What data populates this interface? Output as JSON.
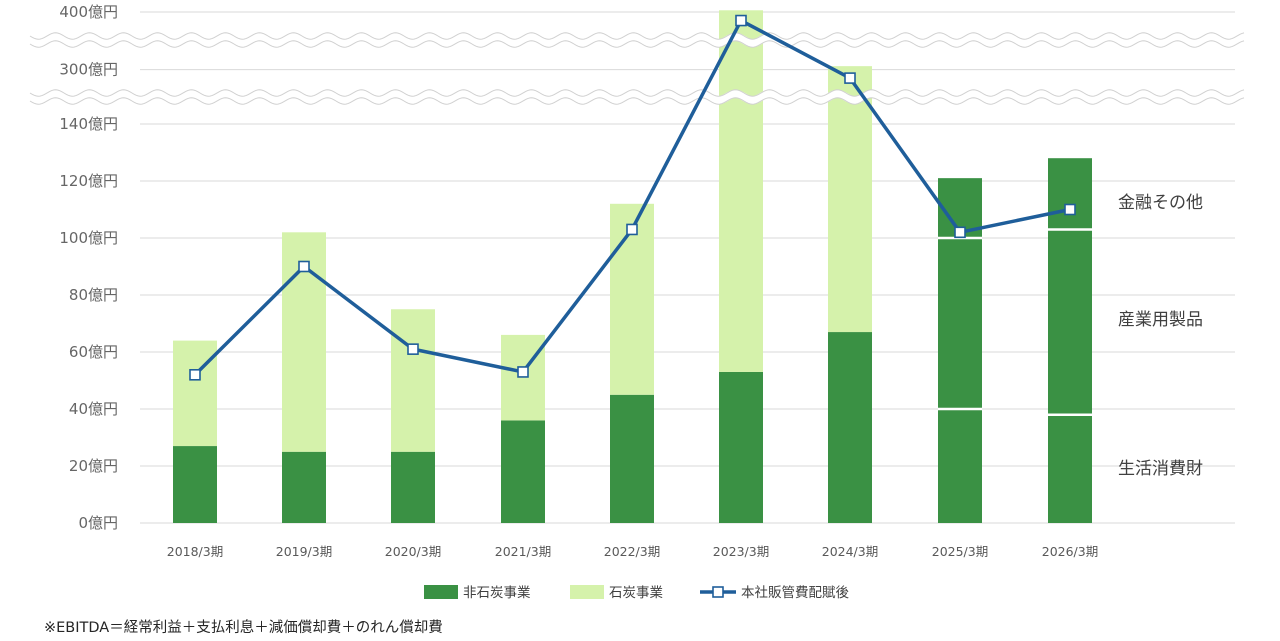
{
  "chart_data": {
    "type": "bar",
    "stacked": true,
    "categories": [
      "2018/3期",
      "2019/3期",
      "2020/3期",
      "2021/3期",
      "2022/3期",
      "2023/3期",
      "2024/3期",
      "2025/3期",
      "2026/3期"
    ],
    "y_ticks": [
      "0億円",
      "20億円",
      "40億円",
      "60億円",
      "80億円",
      "100億円",
      "120億円",
      "140億円",
      "300億円",
      "400億円"
    ],
    "axis_breaks": [
      "140億円-300億円",
      "300億円-400億円"
    ],
    "series": [
      {
        "name": "非石炭事業",
        "type": "bar",
        "color": "#3a9144",
        "values": [
          27,
          25,
          25,
          36,
          45,
          53,
          67,
          121,
          128
        ]
      },
      {
        "name": "石炭事業",
        "type": "bar",
        "color": "#d5f2ab",
        "values": [
          37,
          77,
          50,
          30,
          67,
          350,
          238,
          0,
          0
        ]
      },
      {
        "name": "本社販管費配賦後",
        "type": "line",
        "color": "#1f5e9a",
        "values": [
          52,
          90,
          61,
          53,
          103,
          385,
          275,
          102,
          110
        ]
      }
    ],
    "segments_2025_2026": {
      "labels": [
        "金融その他",
        "産業用製品",
        "生活消費財"
      ],
      "2025/3期": {
        "生活消費財": 40,
        "産業用製品": 60,
        "金融その他": 21
      },
      "2026/3期": {
        "生活消費財": 38,
        "産業用製品": 65,
        "金融その他": 25
      }
    },
    "legend_position": "bottom",
    "grid": true
  },
  "footnote": "※EBITDA＝経常利益＋支払利息＋減価償却費＋のれん償却費"
}
